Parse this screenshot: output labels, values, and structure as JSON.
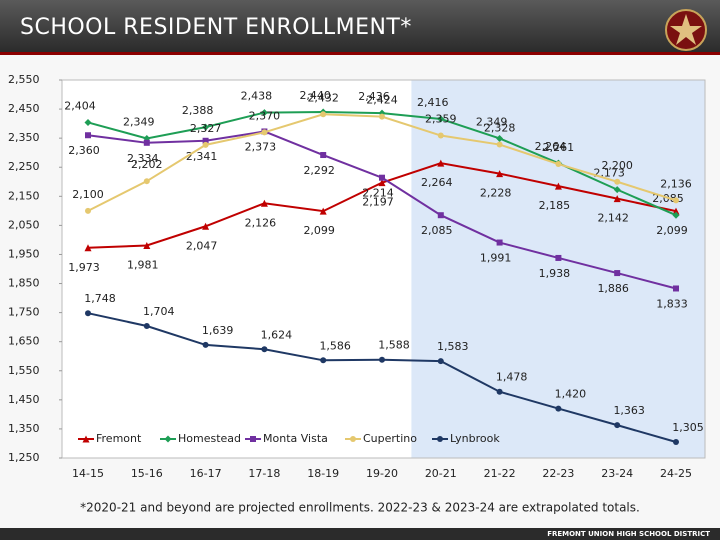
{
  "chart_data": {
    "type": "line",
    "title": "SCHOOL RESIDENT ENROLLMENT*",
    "footnote": "*2020-21 and beyond are projected enrollments. 2022-23 & 2023-24 are extrapolated totals.",
    "footer": "FREMONT UNION HIGH SCHOOL DISTRICT",
    "categories": [
      "14-15",
      "15-16",
      "16-17",
      "17-18",
      "18-19",
      "19-20",
      "20-21",
      "21-22",
      "22-23",
      "23-24",
      "24-25"
    ],
    "ylim": [
      1250,
      2550
    ],
    "yticks": [
      {
        "value": 1250,
        "label": "1,250"
      },
      {
        "value": 1350,
        "label": "1,350"
      },
      {
        "value": 1450,
        "label": "1,450"
      },
      {
        "value": 1550,
        "label": "1,550"
      },
      {
        "value": 1650,
        "label": "1,650"
      },
      {
        "value": 1750,
        "label": "1,750"
      },
      {
        "value": 1850,
        "label": "1,850"
      },
      {
        "value": 1950,
        "label": "1,950"
      },
      {
        "value": 2050,
        "label": "2,050"
      },
      {
        "value": 2150,
        "label": "2,150"
      },
      {
        "value": 2250,
        "label": "2,250"
      },
      {
        "value": 2350,
        "label": "2,350"
      },
      {
        "value": 2450,
        "label": "2,450"
      },
      {
        "value": 2550,
        "label": "2,550"
      }
    ],
    "series": [
      {
        "name": "Fremont",
        "color": "#c00000",
        "values": [
          1973,
          1981,
          2047,
          2126,
          2099,
          2197,
          2264,
          2228,
          2185,
          2142,
          2099
        ],
        "value_labels": [
          "1,973",
          "1,981",
          "2,047",
          "2,126",
          "2,099",
          "2,197",
          "2,264",
          "2,228",
          "2,185",
          "2,142",
          "2,099"
        ]
      },
      {
        "name": "Homestead",
        "color": "#1e9e55",
        "values": [
          2404,
          2349,
          2388,
          2438,
          2440,
          2436,
          2416,
          2349,
          2264,
          2173,
          2085
        ],
        "value_labels": [
          "2,404",
          "2,349",
          "2,388",
          "2,438",
          "2,440",
          "2,436",
          "2,416",
          "2,349",
          "2,264",
          "2,173",
          "2,085"
        ]
      },
      {
        "name": "Monta Vista",
        "color": "#7030a0",
        "values": [
          2360,
          2334,
          2341,
          2373,
          2292,
          2214,
          2085,
          1991,
          1938,
          1886,
          1833
        ],
        "value_labels": [
          "2,360",
          "2,334",
          "2,341",
          "2,373",
          "2,292",
          "2,214",
          "2,085",
          "1,991",
          "1,938",
          "1,886",
          "1,833"
        ]
      },
      {
        "name": "Cupertino",
        "color": "#e5c86f",
        "values": [
          2100,
          2202,
          2327,
          2370,
          2432,
          2424,
          2359,
          2328,
          2261,
          2200,
          2136
        ],
        "value_labels": [
          "2,100",
          "2,202",
          "2,327",
          "2,370",
          "2,432",
          "2,424",
          "2,359",
          "2,328",
          "2,261",
          "2,200",
          "2,136"
        ]
      },
      {
        "name": "Lynbrook",
        "color": "#1f3864",
        "values": [
          1748,
          1704,
          1639,
          1624,
          1586,
          1588,
          1583,
          1478,
          1420,
          1363,
          1305
        ],
        "value_labels": [
          "1,748",
          "1,704",
          "1,639",
          "1,624",
          "1,586",
          "1,588",
          "1,583",
          "1,478",
          "1,420",
          "1,363",
          "1,305"
        ]
      }
    ]
  }
}
